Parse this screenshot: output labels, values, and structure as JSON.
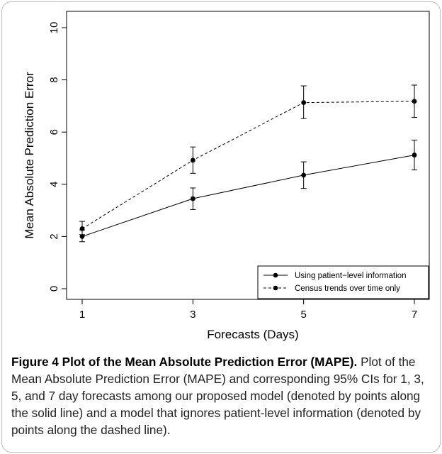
{
  "chart_data": {
    "type": "line",
    "x": [
      1,
      3,
      5,
      7
    ],
    "xlabel": "Forecasts (Days)",
    "ylabel": "Mean Absolute Prediction Error",
    "xticks": [
      "1",
      "3",
      "5",
      "7"
    ],
    "yticks": [
      "0",
      "2",
      "4",
      "6",
      "8",
      "10"
    ],
    "xlim": [
      0.8,
      7.4
    ],
    "ylim": [
      0,
      10
    ],
    "grid": false,
    "legend_position": "bottom-right",
    "series": [
      {
        "name": "Using patient−level information",
        "line_style": "solid",
        "values": [
          2.0,
          3.45,
          4.35,
          5.12
        ],
        "ci_low": [
          1.8,
          3.03,
          3.84,
          4.55
        ],
        "ci_high": [
          2.25,
          3.86,
          4.86,
          5.69
        ]
      },
      {
        "name": "Census trends over time only",
        "line_style": "dashed",
        "values": [
          2.3,
          4.92,
          7.13,
          7.18
        ],
        "ci_low": [
          2.07,
          4.42,
          6.52,
          6.56
        ],
        "ci_high": [
          2.58,
          5.43,
          7.77,
          7.8
        ]
      }
    ]
  },
  "caption": {
    "label": "Figure 4 Plot of the Mean Absolute Prediction Error (MAPE).",
    "text": " Plot of the Mean Absolute Prediction Error (MAPE) and corresponding 95% CIs for 1, 3, 5, and 7 day forecasts among our proposed model (denoted by points along the solid line) and a model that ignores patient-level information (denoted by points along the dashed line)."
  },
  "colors": {
    "line": "#000000",
    "border": "#bdbdbd"
  }
}
